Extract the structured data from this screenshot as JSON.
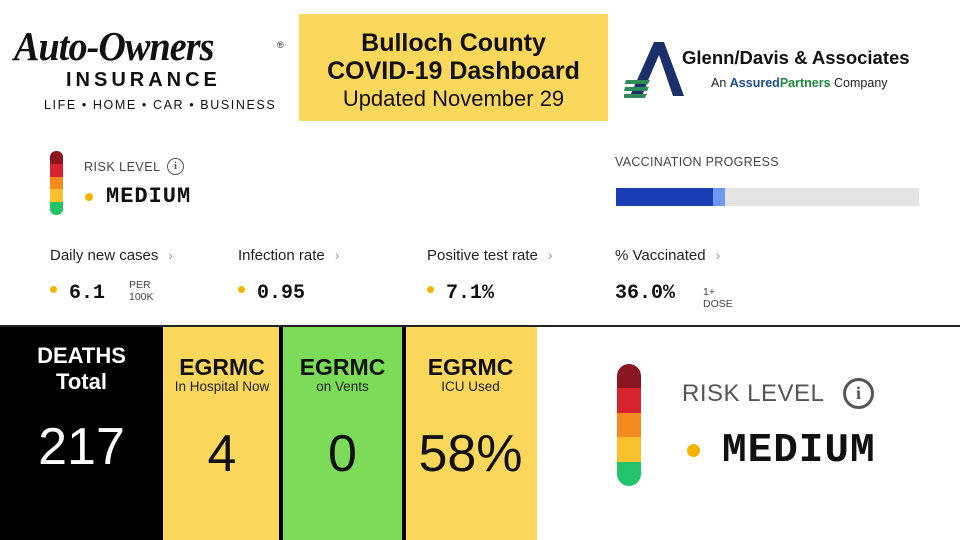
{
  "header": {
    "sponsor_left": {
      "brand": "Auto-Owners",
      "registered": "®",
      "line2": "INSURANCE",
      "tagline": "LIFE • HOME • CAR • BUSINESS"
    },
    "title": {
      "line1": "Bulloch County",
      "line2": "COVID-19 Dashboard",
      "line3": "Updated November 29"
    },
    "sponsor_right": {
      "name": "Glenn/Davis & Associates",
      "sub_prefix": "An",
      "sub_assured": "Assured",
      "sub_partners": "Partners",
      "sub_suffix": "Company",
      "logo_icon": "glenn-davis-a-logo-icon"
    }
  },
  "risk_panel": {
    "risk_label": "RISK LEVEL",
    "info_icon": "info-icon",
    "risk_value": "MEDIUM",
    "vaccination_label": "VACCINATION PROGRESS",
    "vaccination_full_fraction": 0.32,
    "vaccination_partial_fraction": 0.04,
    "metrics": [
      {
        "label": "Daily new cases",
        "value": "6.1",
        "unit_line1": "PER",
        "unit_line2": "100K"
      },
      {
        "label": "Infection rate",
        "value": "0.95"
      },
      {
        "label": "Positive test rate",
        "value": "7.1%"
      },
      {
        "label": "% Vaccinated",
        "value": "36.0%",
        "unit_line1": "1+ DOSE"
      }
    ],
    "chevron": "›"
  },
  "tiles": {
    "deaths": {
      "line1": "DEATHS",
      "line2": "Total",
      "value": "217"
    },
    "hospital": {
      "title": "EGRMC",
      "sub": "In Hospital Now",
      "value": "4"
    },
    "vents": {
      "title": "EGRMC",
      "sub": "on Vents",
      "value": "0"
    },
    "icu": {
      "title": "EGRMC",
      "sub": "ICU Used",
      "value": "58%"
    }
  },
  "risk_large": {
    "label": "RISK LEVEL",
    "info_glyph": "i",
    "value": "MEDIUM"
  },
  "colors": {
    "title_yellow": "#fbd75b",
    "vents_green": "#7cdc59",
    "risk_scale": [
      "#8b1622",
      "#d8232f",
      "#f58a1f",
      "#fbc02d",
      "#23c36a"
    ],
    "status_dot": "#f4b400",
    "vaccination_fill": "#1a3fb5",
    "vaccination_partial": "#6f98f4"
  }
}
